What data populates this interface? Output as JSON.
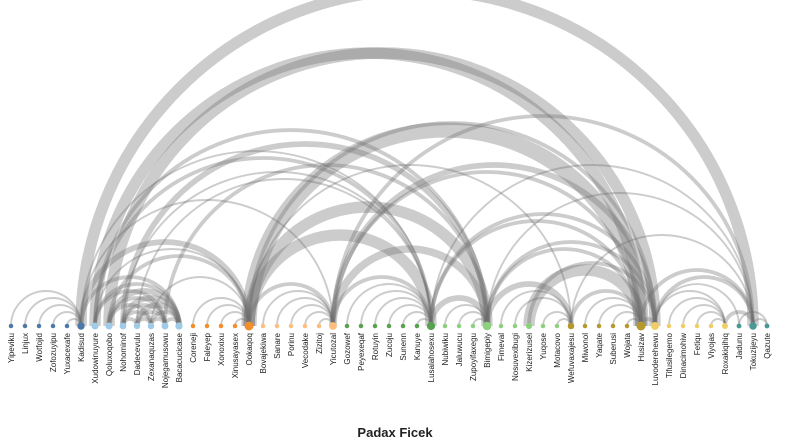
{
  "title": "Padax Ficek",
  "colors": {
    "link": "#6e6e6e",
    "groups": {
      "blue": "#4e79a7",
      "lightblue": "#a0cbe8",
      "orange": "#f28e2b",
      "lightorange": "#ffbe7d",
      "green": "#59a14f",
      "lightgreen": "#8cd17d",
      "olive": "#b6992d",
      "yellow": "#f1ce63",
      "teal": "#499894"
    }
  },
  "nodes": [
    {
      "name": "Yipeviku",
      "group": "blue"
    },
    {
      "name": "Linjux",
      "group": "blue"
    },
    {
      "name": "Wotfojid",
      "group": "blue"
    },
    {
      "name": "Zofozuyipu",
      "group": "blue"
    },
    {
      "name": "Yuxacexafe",
      "group": "blue"
    },
    {
      "name": "Kadisud",
      "group": "blue"
    },
    {
      "name": "Xudowinuyure",
      "group": "lightblue"
    },
    {
      "name": "Qoluxoqobo",
      "group": "lightblue"
    },
    {
      "name": "Nohominof",
      "group": "lightblue"
    },
    {
      "name": "Dadecevulu",
      "group": "lightblue"
    },
    {
      "name": "Zexanaquzas",
      "group": "lightblue"
    },
    {
      "name": "Nojegamusowu",
      "group": "lightblue"
    },
    {
      "name": "Bacacucicase",
      "group": "lightblue"
    },
    {
      "name": "Coreneji",
      "group": "orange"
    },
    {
      "name": "Faleyep",
      "group": "orange"
    },
    {
      "name": "Xonoxixu",
      "group": "orange"
    },
    {
      "name": "Xinusayasex",
      "group": "orange"
    },
    {
      "name": "Ookaqoq",
      "group": "orange"
    },
    {
      "name": "Bovajekiwa",
      "group": "lightorange"
    },
    {
      "name": "Sanare",
      "group": "lightorange"
    },
    {
      "name": "Porinu",
      "group": "lightorange"
    },
    {
      "name": "Vecodake",
      "group": "lightorange"
    },
    {
      "name": "Zizitoj",
      "group": "lightorange"
    },
    {
      "name": "Yicutozal",
      "group": "lightorange"
    },
    {
      "name": "Gozowef",
      "group": "green"
    },
    {
      "name": "Peyexeqaf",
      "group": "green"
    },
    {
      "name": "Rotuyin",
      "group": "green"
    },
    {
      "name": "Zucoju",
      "group": "green"
    },
    {
      "name": "Sunenn",
      "group": "green"
    },
    {
      "name": "Kanuye",
      "group": "green"
    },
    {
      "name": "Lusalahosexu",
      "group": "green"
    },
    {
      "name": "Nubiwiku",
      "group": "lightgreen"
    },
    {
      "name": "Jaluwucu",
      "group": "lightgreen"
    },
    {
      "name": "Zupoyifaxegu",
      "group": "lightgreen"
    },
    {
      "name": "Bimigepiy",
      "group": "lightgreen"
    },
    {
      "name": "Fimeval",
      "group": "lightgreen"
    },
    {
      "name": "Nosuvexibugi",
      "group": "lightgreen"
    },
    {
      "name": "Kizerizusel",
      "group": "lightgreen"
    },
    {
      "name": "Yuqose",
      "group": "lightgreen"
    },
    {
      "name": "Motacovo",
      "group": "lightgreen"
    },
    {
      "name": "Wefuvaxajesu",
      "group": "olive"
    },
    {
      "name": "Miwonol",
      "group": "olive"
    },
    {
      "name": "Yaqate",
      "group": "olive"
    },
    {
      "name": "Suberusi",
      "group": "olive"
    },
    {
      "name": "Wojata",
      "group": "olive"
    },
    {
      "name": "Husizav",
      "group": "olive"
    },
    {
      "name": "Luvoderehewu",
      "group": "yellow"
    },
    {
      "name": "Tifusilegemo",
      "group": "yellow"
    },
    {
      "name": "Dinacimohiw",
      "group": "yellow"
    },
    {
      "name": "Fetiqu",
      "group": "yellow"
    },
    {
      "name": "Viyojas",
      "group": "yellow"
    },
    {
      "name": "Roxakiqihiq",
      "group": "yellow"
    },
    {
      "name": "Jadunu",
      "group": "teal"
    },
    {
      "name": "Tokuzijeyu",
      "group": "teal"
    },
    {
      "name": "Qazute",
      "group": "teal"
    }
  ],
  "links": [
    [
      0,
      5,
      1
    ],
    [
      1,
      5,
      1
    ],
    [
      2,
      5,
      1
    ],
    [
      3,
      5,
      1
    ],
    [
      4,
      5,
      1
    ],
    [
      5,
      53,
      6
    ],
    [
      5,
      17,
      3
    ],
    [
      5,
      12,
      2
    ],
    [
      5,
      30,
      1
    ],
    [
      5,
      23,
      1
    ],
    [
      6,
      45,
      6
    ],
    [
      6,
      30,
      2
    ],
    [
      6,
      34,
      2
    ],
    [
      6,
      12,
      2
    ],
    [
      6,
      11,
      2
    ],
    [
      6,
      17,
      1
    ],
    [
      7,
      12,
      3
    ],
    [
      7,
      11,
      2
    ],
    [
      7,
      10,
      2
    ],
    [
      7,
      46,
      6
    ],
    [
      7,
      17,
      2
    ],
    [
      8,
      12,
      3
    ],
    [
      8,
      11,
      2
    ],
    [
      8,
      10,
      2
    ],
    [
      8,
      9,
      2
    ],
    [
      8,
      34,
      3
    ],
    [
      8,
      30,
      1
    ],
    [
      9,
      12,
      3
    ],
    [
      9,
      11,
      2
    ],
    [
      9,
      10,
      2
    ],
    [
      9,
      30,
      1
    ],
    [
      10,
      12,
      2
    ],
    [
      10,
      11,
      2
    ],
    [
      10,
      17,
      1
    ],
    [
      11,
      12,
      2
    ],
    [
      11,
      34,
      2
    ],
    [
      13,
      17,
      1
    ],
    [
      14,
      17,
      1
    ],
    [
      15,
      17,
      1
    ],
    [
      16,
      17,
      1
    ],
    [
      17,
      30,
      6
    ],
    [
      17,
      34,
      6
    ],
    [
      17,
      45,
      8
    ],
    [
      17,
      23,
      2
    ],
    [
      17,
      46,
      2
    ],
    [
      17,
      40,
      1
    ],
    [
      18,
      23,
      1
    ],
    [
      19,
      23,
      1
    ],
    [
      20,
      23,
      1
    ],
    [
      21,
      23,
      1
    ],
    [
      22,
      23,
      1
    ],
    [
      23,
      30,
      2
    ],
    [
      23,
      34,
      4
    ],
    [
      23,
      45,
      2
    ],
    [
      23,
      46,
      3
    ],
    [
      23,
      53,
      2
    ],
    [
      24,
      30,
      1
    ],
    [
      25,
      30,
      1
    ],
    [
      26,
      30,
      1
    ],
    [
      27,
      30,
      1
    ],
    [
      28,
      30,
      1
    ],
    [
      29,
      30,
      1
    ],
    [
      30,
      34,
      3
    ],
    [
      30,
      45,
      2
    ],
    [
      30,
      46,
      2
    ],
    [
      30,
      53,
      1
    ],
    [
      31,
      34,
      1
    ],
    [
      32,
      34,
      1
    ],
    [
      33,
      34,
      1
    ],
    [
      34,
      40,
      3
    ],
    [
      34,
      45,
      2
    ],
    [
      34,
      46,
      2
    ],
    [
      34,
      53,
      1
    ],
    [
      35,
      40,
      1
    ],
    [
      36,
      40,
      1
    ],
    [
      37,
      45,
      6
    ],
    [
      37,
      46,
      2
    ],
    [
      38,
      40,
      1
    ],
    [
      39,
      40,
      1
    ],
    [
      40,
      45,
      2
    ],
    [
      40,
      53,
      1
    ],
    [
      41,
      45,
      1
    ],
    [
      42,
      45,
      1
    ],
    [
      43,
      45,
      1
    ],
    [
      44,
      45,
      1
    ],
    [
      45,
      46,
      2
    ],
    [
      45,
      53,
      2
    ],
    [
      46,
      51,
      1
    ],
    [
      46,
      52,
      1
    ],
    [
      46,
      53,
      2
    ],
    [
      47,
      51,
      1
    ],
    [
      48,
      51,
      1
    ],
    [
      49,
      51,
      1
    ],
    [
      50,
      51,
      1
    ],
    [
      51,
      53,
      2
    ],
    [
      52,
      54,
      1
    ],
    [
      53,
      54,
      1
    ]
  ]
}
